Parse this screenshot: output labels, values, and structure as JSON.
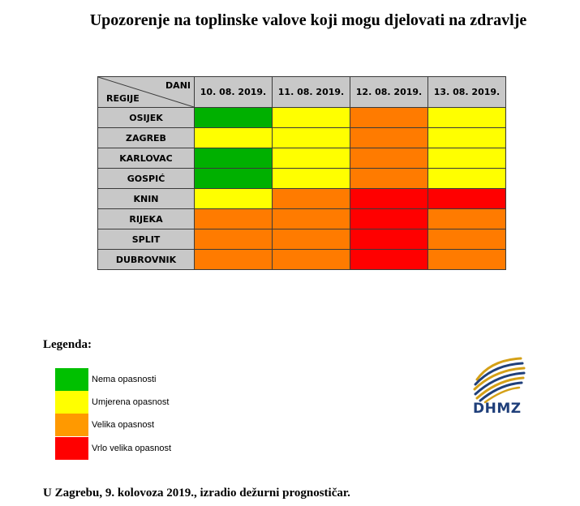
{
  "title": "Upozorenje na toplinske valove koji mogu djelovati na zdravlje",
  "table": {
    "corner_top": "DANI",
    "corner_bottom": "REGIJE",
    "dates": [
      "10. 08. 2019.",
      "11. 08. 2019.",
      "12. 08. 2019.",
      "13. 08. 2019."
    ],
    "rows": [
      {
        "region": "OSIJEK",
        "levels": [
          "green",
          "yellow",
          "orange",
          "yellow"
        ]
      },
      {
        "region": "ZAGREB",
        "levels": [
          "yellow",
          "yellow",
          "orange",
          "yellow"
        ]
      },
      {
        "region": "KARLOVAC",
        "levels": [
          "green",
          "yellow",
          "orange",
          "yellow"
        ]
      },
      {
        "region": "GOSPIĆ",
        "levels": [
          "green",
          "yellow",
          "orange",
          "yellow"
        ]
      },
      {
        "region": "KNIN",
        "levels": [
          "yellow",
          "orange",
          "red",
          "red"
        ]
      },
      {
        "region": "RIJEKA",
        "levels": [
          "orange",
          "orange",
          "red",
          "orange"
        ]
      },
      {
        "region": "SPLIT",
        "levels": [
          "orange",
          "orange",
          "red",
          "orange"
        ]
      },
      {
        "region": "DUBROVNIK",
        "levels": [
          "orange",
          "orange",
          "red",
          "orange"
        ]
      }
    ]
  },
  "colors": {
    "green": "#00b000",
    "yellow": "#ffff00",
    "orange": "#ff7b00",
    "red": "#ff0000"
  },
  "legend": {
    "title": "Legenda:",
    "items": [
      {
        "label": "Nema opasnosti",
        "color": "#00c000"
      },
      {
        "label": "Umjerena opasnost",
        "color": "#ffff00"
      },
      {
        "label": "Velika opasnost",
        "color": "#ff9900"
      },
      {
        "label": "Vrlo velika opasnost",
        "color": "#ff0000"
      }
    ]
  },
  "logo": {
    "text": "DHMZ",
    "icon": "dhmz-logo-icon",
    "primary_color": "#1f3f7a",
    "accent_color": "#d4a017"
  },
  "footer": "U Zagrebu, 9. kolovoza 2019., izradio dežurni prognostičar."
}
